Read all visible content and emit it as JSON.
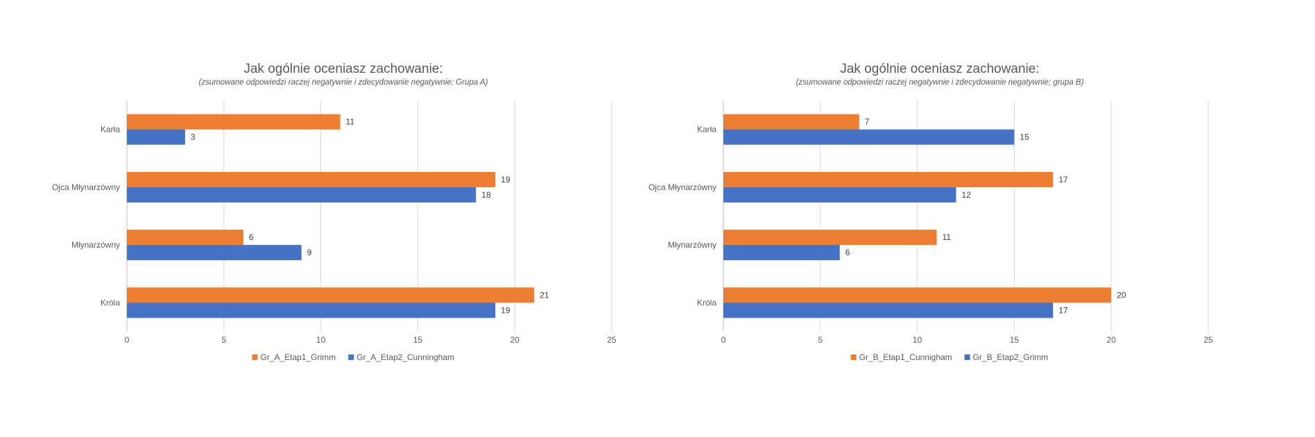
{
  "chart_data": [
    {
      "type": "bar",
      "orientation": "horizontal",
      "title": "Jak ogólnie oceniasz zachowanie:",
      "subtitle": "(zsumowane odpowiedzi raczej negatywnie i zdecydowanie negatywnie; Grupa A)",
      "categories": [
        "Karła",
        "Ojca Młynarzówny",
        "Młynarzówny",
        "Króla"
      ],
      "series": [
        {
          "name": "Gr_A_Etap1_Grimm",
          "color": "#ED7D31",
          "values": [
            11,
            19,
            6,
            21
          ]
        },
        {
          "name": "Gr_A_Etap2_Cunningham",
          "color": "#4472C4",
          "values": [
            3,
            18,
            9,
            19
          ]
        }
      ],
      "xlim": [
        0,
        25
      ],
      "xticks": [
        "0",
        "5",
        "10",
        "15",
        "20",
        "25"
      ],
      "grid": true,
      "legend": "bottom"
    },
    {
      "type": "bar",
      "orientation": "horizontal",
      "title": "Jak ogólnie oceniasz zachowanie:",
      "subtitle": "(zsumowane odpowiedzi raczej negatywnie i zdecydowanie negatywnie; grupa B)",
      "categories": [
        "Karła",
        "Ojca Młynarzówny",
        "Młynarzówny",
        "Króla"
      ],
      "series": [
        {
          "name": "Gr_B_Etap1_Cunnigham",
          "color": "#ED7D31",
          "values": [
            7,
            17,
            11,
            20
          ]
        },
        {
          "name": "Gr_B_Etap2_Grimm",
          "color": "#4472C4",
          "values": [
            15,
            12,
            6,
            17
          ]
        }
      ],
      "xlim": [
        0,
        25
      ],
      "xticks": [
        "0",
        "5",
        "10",
        "15",
        "20",
        "25"
      ],
      "grid": true,
      "legend": "bottom"
    }
  ]
}
